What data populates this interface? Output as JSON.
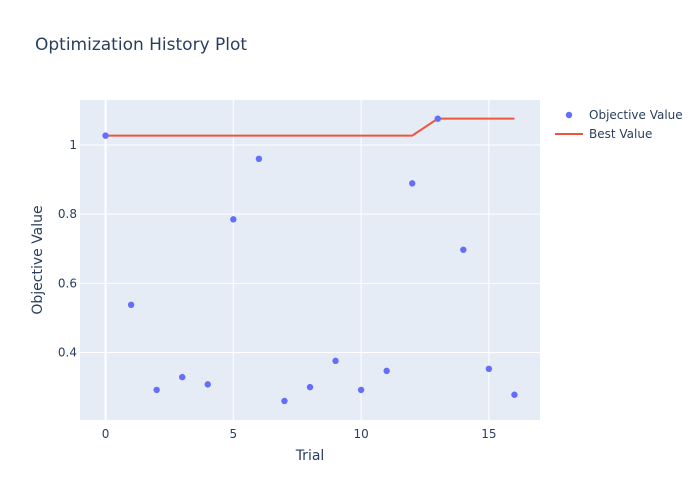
{
  "chart_data": {
    "type": "scatter",
    "title": "Optimization History Plot",
    "xlabel": "Trial",
    "ylabel": "Objective Value",
    "xlim": [
      -1,
      17
    ],
    "ylim": [
      0.205,
      1.13
    ],
    "x_ticks": [
      0,
      5,
      10,
      15
    ],
    "y_ticks": [
      0.4,
      0.6,
      0.8,
      1
    ],
    "grid": true,
    "legend_position": "right",
    "colors": {
      "objective": "#636efa",
      "best": "#ef553b",
      "plot_bg": "#e5ecf6"
    },
    "series": [
      {
        "name": "Objective Value",
        "kind": "markers",
        "x": [
          0,
          1,
          2,
          3,
          4,
          5,
          6,
          7,
          8,
          9,
          10,
          11,
          12,
          13,
          14,
          15,
          16
        ],
        "values": [
          1.027,
          0.538,
          0.292,
          0.329,
          0.308,
          0.785,
          0.96,
          0.26,
          0.3,
          0.376,
          0.292,
          0.347,
          0.889,
          1.076,
          0.697,
          0.353,
          0.278
        ]
      },
      {
        "name": "Best Value",
        "kind": "line",
        "x": [
          0,
          1,
          2,
          3,
          4,
          5,
          6,
          7,
          8,
          9,
          10,
          11,
          12,
          13,
          14,
          15,
          16
        ],
        "values": [
          1.027,
          1.027,
          1.027,
          1.027,
          1.027,
          1.027,
          1.027,
          1.027,
          1.027,
          1.027,
          1.027,
          1.027,
          1.027,
          1.076,
          1.076,
          1.076,
          1.076
        ]
      }
    ]
  }
}
